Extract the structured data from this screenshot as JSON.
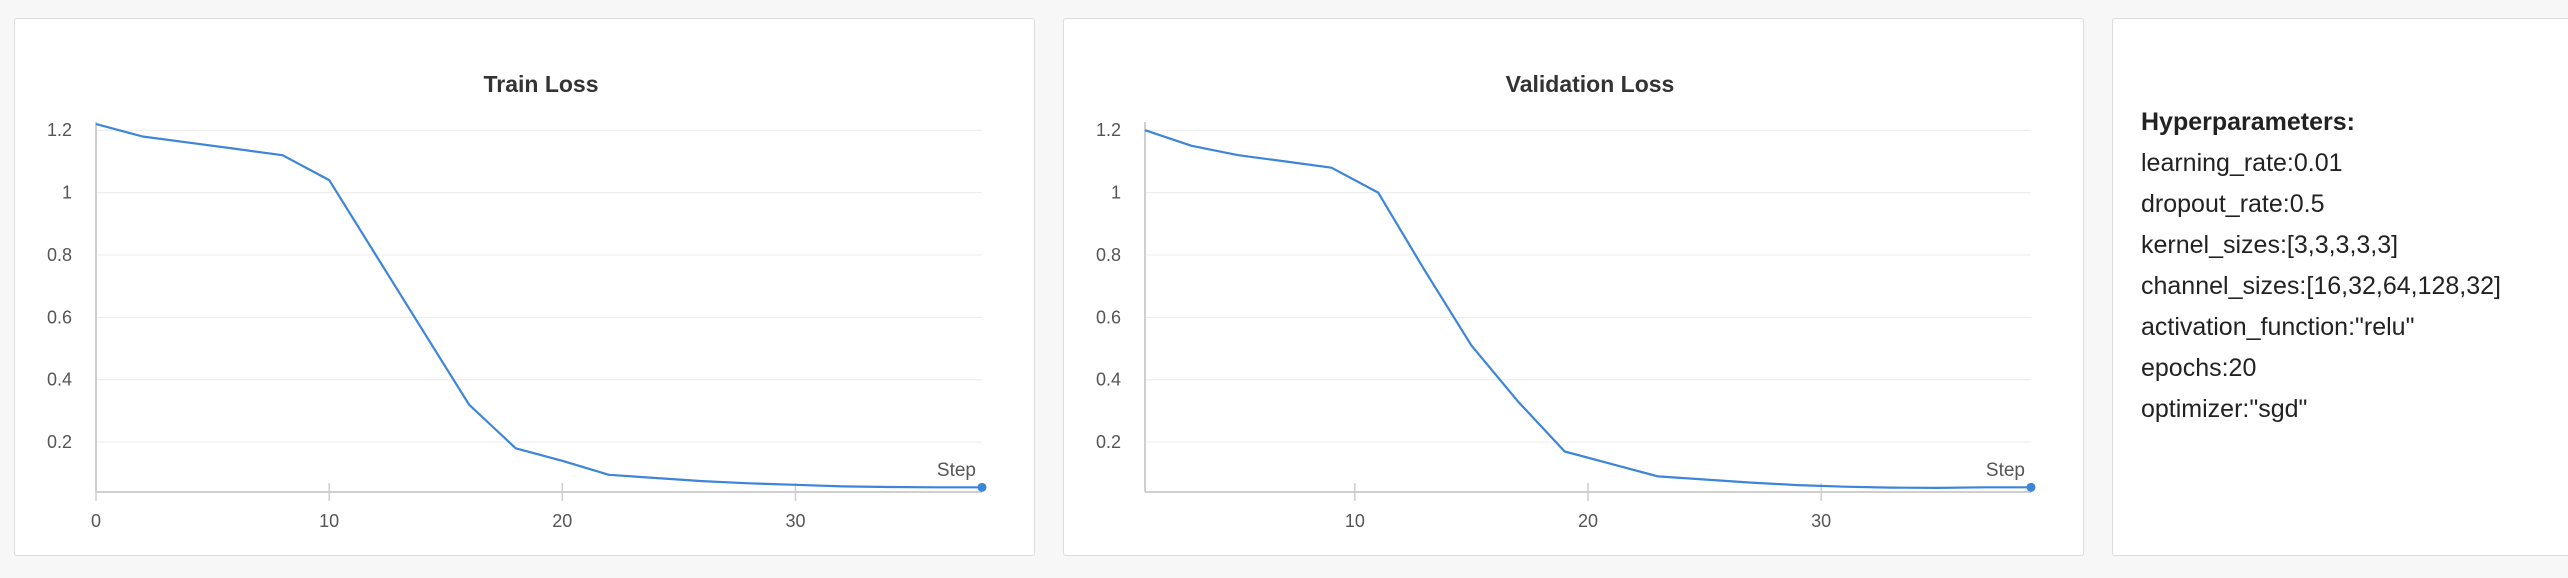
{
  "colors": {
    "line": "#3d85d8",
    "grid": "#ececec",
    "axis": "#cfcfcf"
  },
  "chart_data": [
    {
      "type": "line",
      "title": "Train Loss",
      "xlabel": "Step",
      "ylabel": "",
      "xlim": [
        0,
        38
      ],
      "ylim": [
        0.04,
        1.22
      ],
      "xticks": [
        0,
        10,
        20,
        30
      ],
      "yticks": [
        0.2,
        0.4,
        0.6,
        0.8,
        1,
        1.2
      ],
      "grid": true,
      "series": [
        {
          "x": [
            0,
            2,
            4,
            6,
            8,
            10,
            12,
            14,
            16,
            17,
            18,
            20,
            22,
            24,
            26,
            28,
            30,
            32,
            34,
            36,
            38
          ],
          "values": [
            1.22,
            1.18,
            1.16,
            1.14,
            1.12,
            1.04,
            0.8,
            0.56,
            0.32,
            0.25,
            0.18,
            0.14,
            0.095,
            0.085,
            0.075,
            0.068,
            0.063,
            0.058,
            0.056,
            0.055,
            0.055
          ]
        }
      ]
    },
    {
      "type": "line",
      "title": "Validation Loss",
      "xlabel": "Step",
      "ylabel": "",
      "xlim": [
        1,
        39
      ],
      "ylim": [
        0.04,
        1.22
      ],
      "xticks": [
        10,
        20,
        30
      ],
      "yticks": [
        0.2,
        0.4,
        0.6,
        0.8,
        1,
        1.2
      ],
      "grid": true,
      "series": [
        {
          "x": [
            1,
            3,
            5,
            7,
            9,
            11,
            13,
            15,
            17,
            19,
            21,
            23,
            25,
            27,
            29,
            31,
            33,
            35,
            37,
            39
          ],
          "values": [
            1.2,
            1.15,
            1.12,
            1.1,
            1.08,
            1.0,
            0.75,
            0.51,
            0.33,
            0.17,
            0.13,
            0.09,
            0.08,
            0.07,
            0.062,
            0.057,
            0.054,
            0.053,
            0.055,
            0.055
          ]
        }
      ]
    }
  ],
  "hyperparameters": {
    "title": "Hyperparameters:",
    "lines": [
      "learning_rate:0.01",
      "dropout_rate:0.5",
      "kernel_sizes:[3,3,3,3,3]",
      "channel_sizes:[16,32,64,128,32]",
      "activation_function:\"relu\"",
      "epochs:20",
      "optimizer:\"sgd\""
    ]
  }
}
